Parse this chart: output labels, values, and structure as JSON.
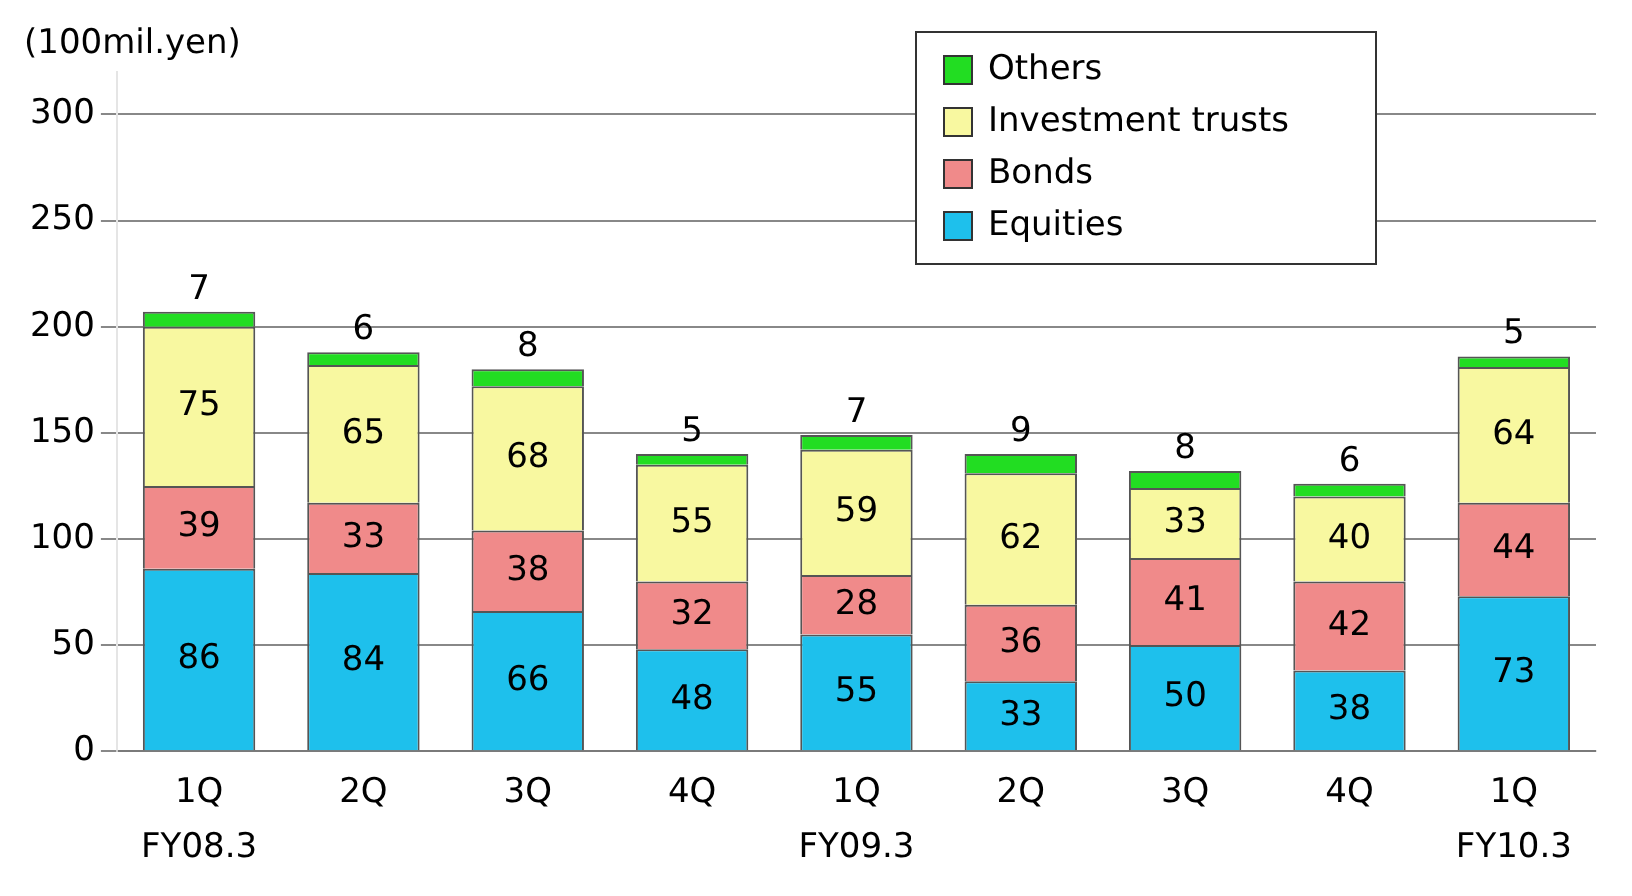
{
  "chart_data": {
    "type": "bar",
    "stacked": true,
    "ylabel": "(100mil.yen)",
    "categories": [
      "1Q",
      "2Q",
      "3Q",
      "4Q",
      "1Q",
      "2Q",
      "3Q",
      "4Q",
      "1Q"
    ],
    "series": [
      {
        "name": "Equities",
        "color": "#1ec0ec",
        "values": [
          86,
          84,
          66,
          48,
          55,
          33,
          50,
          38,
          73
        ]
      },
      {
        "name": "Bonds",
        "color": "#f08a8a",
        "values": [
          39,
          33,
          38,
          32,
          28,
          36,
          41,
          42,
          44
        ]
      },
      {
        "name": "Investment trusts",
        "color": "#f8f8a0",
        "values": [
          75,
          65,
          68,
          55,
          59,
          62,
          33,
          40,
          64
        ]
      },
      {
        "name": "Others",
        "color": "#22dd22",
        "values": [
          7,
          6,
          8,
          5,
          7,
          9,
          8,
          6,
          5
        ]
      }
    ],
    "ylim": [
      0,
      320
    ],
    "yticks": [
      0,
      50,
      100,
      150,
      200,
      250,
      300
    ],
    "grid": "y",
    "legend": "top right",
    "data_labels": true,
    "annotations": [
      "FY08.3",
      "FY09.3",
      "FY10.3"
    ]
  }
}
